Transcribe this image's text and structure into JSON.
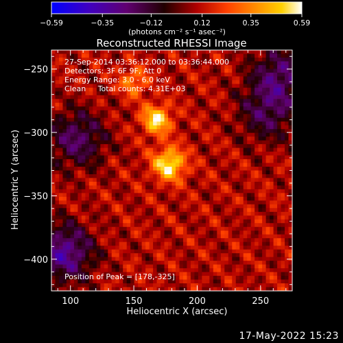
{
  "chart_data": {
    "type": "heatmap",
    "title": "Reconstructed RHESSI Image",
    "xlabel": "Heliocentric X (arcsec)",
    "ylabel": "Heliocentric Y (arcsec)",
    "xlim": [
      85,
      275
    ],
    "ylim": [
      -425,
      -235
    ],
    "x_ticks": [
      100,
      150,
      200,
      250
    ],
    "x_tick_labels": [
      "100",
      "150",
      "200",
      "250"
    ],
    "y_ticks": [
      -250,
      -300,
      -350,
      -400
    ],
    "y_tick_labels": [
      "−250",
      "−300",
      "−350",
      "−400"
    ],
    "colorbar": {
      "label": "(photons cm⁻² s⁻¹ asec⁻²)",
      "range": [
        -0.59,
        0.59
      ],
      "ticks": [
        -0.59,
        -0.35,
        -0.12,
        0.12,
        0.35,
        0.59
      ],
      "tick_labels": [
        "−0.59",
        "−0.35",
        "−0.12",
        "0.12",
        "0.35",
        "0.59"
      ],
      "colors": [
        "#0000ff",
        "#4000c0",
        "#600070",
        "#200000",
        "#b00000",
        "#ff4000",
        "#ff9000",
        "#ffd000",
        "#ffffff"
      ]
    },
    "annotations": [
      "27-Sep-2014 03:36:12.000 to 03:36:44.000",
      "Detectors: 3F 6F 9F, Att 0",
      "Energy Range: 3.0 - 6.0 keV",
      "Clean     Total counts: 4.31E+03"
    ],
    "peak_label": "Position of Peak = [178,-325]",
    "peak": {
      "x": 178,
      "y": -325,
      "value": 0.59
    },
    "image_background": {
      "dominant": "oscillating sidelobe pattern, values roughly -0.1 to 0.3",
      "negative_regions": [
        {
          "x": 105,
          "y": -305,
          "value": -0.2
        },
        {
          "x": 95,
          "y": -395,
          "value": -0.3
        },
        {
          "x": 265,
          "y": -255,
          "value": -0.2
        },
        {
          "x": 255,
          "y": -285,
          "value": -0.15
        }
      ],
      "secondary_sources": [
        {
          "x": 168,
          "y": -290,
          "value": 0.45
        },
        {
          "x": 150,
          "y": -260,
          "value": 0.25
        }
      ]
    }
  },
  "footer": {
    "timestamp": "17-May-2022 15:23"
  }
}
